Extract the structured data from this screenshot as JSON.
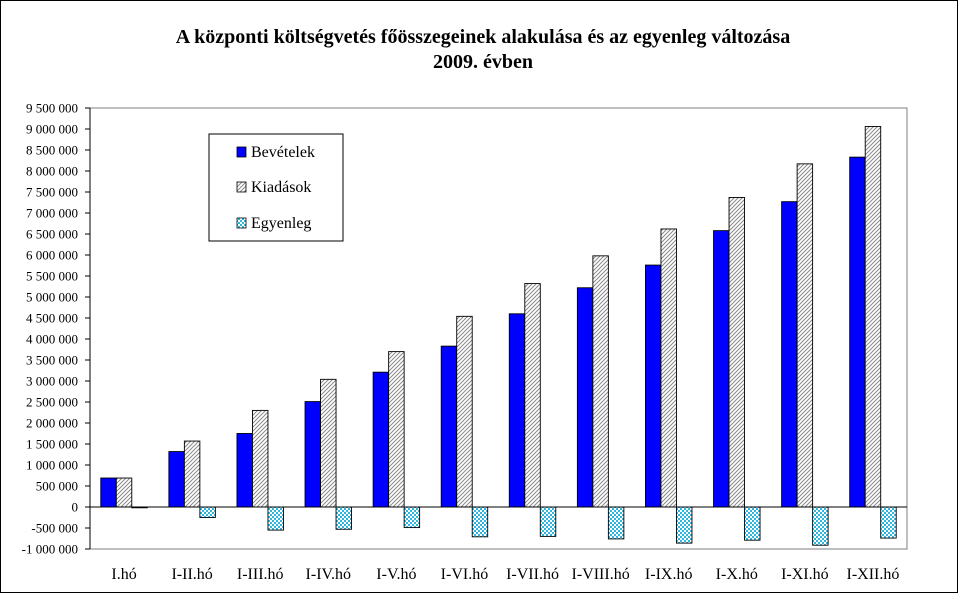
{
  "chart_data": {
    "type": "bar",
    "title_line1": "A központi költségvetés főösszegeinek alakulása és az egyenleg változása",
    "title_line2": "2009. évben",
    "categories": [
      "I.hó",
      "I-II.hó",
      "I-III.hó",
      "I-IV.hó",
      "I-V.hó",
      "I-VI.hó",
      "I-VII.hó",
      "I-VIII.hó",
      "I-IX.hó",
      "I-X.hó",
      "I-XI.hó",
      "I-XII.hó"
    ],
    "series": [
      {
        "name": "Bevételek",
        "color": "#0000ff",
        "values": [
          690000,
          1320000,
          1750000,
          2510000,
          3210000,
          3830000,
          4600000,
          5220000,
          5760000,
          6580000,
          7270000,
          8330000
        ]
      },
      {
        "name": "Kiadások",
        "color": "#c8c8c8",
        "values": [
          690000,
          1570000,
          2300000,
          3040000,
          3700000,
          4540000,
          5320000,
          5980000,
          6620000,
          7370000,
          8170000,
          9060000
        ]
      },
      {
        "name": "Egyenleg",
        "color": "#7fd8f0",
        "values": [
          0,
          -250000,
          -550000,
          -530000,
          -490000,
          -710000,
          -700000,
          -760000,
          -860000,
          -790000,
          -910000,
          -740000
        ]
      }
    ],
    "ylim": [
      -1000000,
      9500000
    ],
    "ytick_labels": [
      "9 500 000",
      "9 000 000",
      "8 500 000",
      "8 000 000",
      "7 500 000",
      "7 000 000",
      "6 500 000",
      "6 000 000",
      "5 500 000",
      "5 000 000",
      "4 500 000",
      "4 000 000",
      "3 500 000",
      "3 000 000",
      "2 500 000",
      "2 000 000",
      "1 500 000",
      "1 000 000",
      "500 000",
      "0",
      "-500 000",
      "-1 000 000"
    ],
    "grid": false,
    "legend_position": "top-left inside plot",
    "xlabel": "",
    "ylabel": ""
  }
}
